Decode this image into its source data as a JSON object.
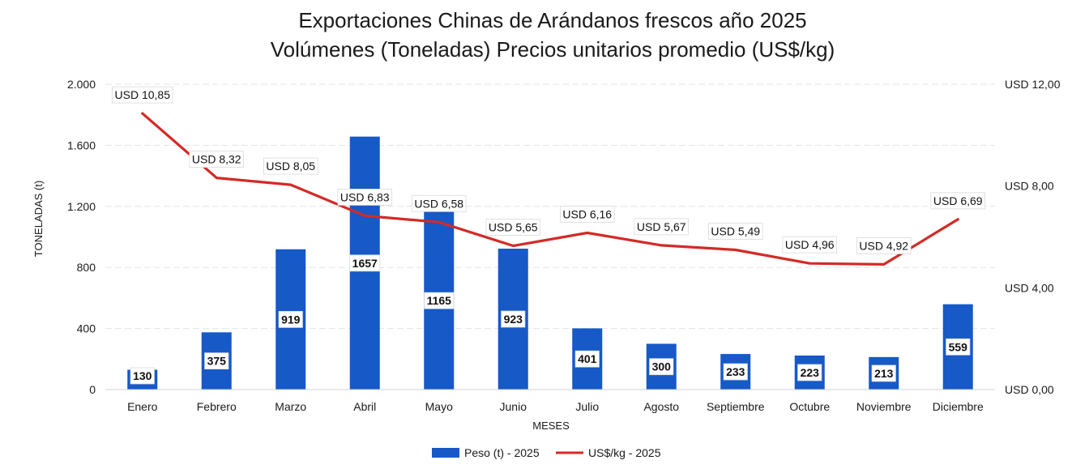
{
  "chart_data": {
    "type": "bar+line",
    "title": "Exportaciones Chinas de Arándanos frescos año 2025",
    "subtitle": "Volúmenes (Toneladas) Precios unitarios promedio (US$/kg)",
    "xlabel": "MESES",
    "ylabel": "TONELADAS (t)",
    "categories": [
      "Enero",
      "Febrero",
      "Marzo",
      "Abril",
      "Mayo",
      "Junio",
      "Julio",
      "Agosto",
      "Septiembre",
      "Octubre",
      "Noviembre",
      "Diciembre"
    ],
    "y_left": {
      "lim": [
        0,
        2000
      ],
      "ticks": [
        0,
        400,
        800,
        1200,
        1600,
        2000
      ],
      "tick_labels": [
        "0",
        "400",
        "800",
        "1.200",
        "1.600",
        "2.000"
      ]
    },
    "y_right": {
      "lim": [
        0,
        12
      ],
      "ticks": [
        0,
        4,
        8,
        12
      ],
      "tick_labels": [
        "USD 0,00",
        "USD 4,00",
        "USD 8,00",
        "USD 12,00"
      ]
    },
    "series": [
      {
        "name": "Peso (t) - 2025",
        "type": "bar",
        "axis": "left",
        "color": "#1659c7",
        "values": [
          130,
          375,
          919,
          1657,
          1165,
          923,
          401,
          300,
          233,
          223,
          213,
          559
        ],
        "labels": [
          "130",
          "375",
          "919",
          "1657",
          "1165",
          "923",
          "401",
          "300",
          "233",
          "223",
          "213",
          "559"
        ]
      },
      {
        "name": "US$/kg - 2025",
        "type": "line",
        "axis": "right",
        "color": "#d42a26",
        "values": [
          10.85,
          8.32,
          8.05,
          6.83,
          6.58,
          5.65,
          6.16,
          5.67,
          5.49,
          4.96,
          4.92,
          6.69
        ],
        "labels": [
          "USD 10,85",
          "USD 8,32",
          "USD 8,05",
          "USD 6,83",
          "USD 6,58",
          "USD 5,65",
          "USD 6,16",
          "USD 5,67",
          "USD 5,49",
          "USD 4,96",
          "USD 4,92",
          "USD 6,69"
        ]
      }
    ],
    "grid": true,
    "legend": "bottom-center"
  }
}
